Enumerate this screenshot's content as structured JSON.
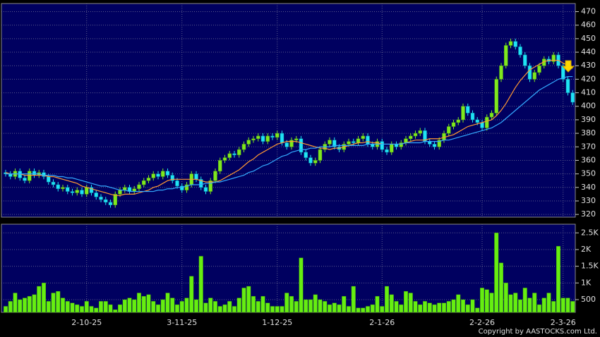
{
  "chart_data": [
    {
      "type": "candlestick",
      "categories": [
        null,
        null,
        null,
        null,
        null,
        null,
        null,
        null,
        null,
        null,
        null,
        null,
        null,
        null,
        null,
        null,
        null,
        "2-10-25",
        null,
        null,
        null,
        null,
        null,
        null,
        null,
        null,
        null,
        null,
        null,
        null,
        null,
        null,
        null,
        null,
        null,
        null,
        null,
        "3-11-25",
        null,
        null,
        null,
        null,
        null,
        null,
        null,
        null,
        null,
        null,
        null,
        null,
        null,
        null,
        null,
        null,
        null,
        null,
        null,
        "1-12-25",
        null,
        null,
        null,
        null,
        null,
        null,
        null,
        null,
        null,
        null,
        null,
        null,
        null,
        null,
        null,
        null,
        null,
        null,
        null,
        null,
        null,
        "2-1-26",
        null,
        null,
        null,
        null,
        null,
        null,
        null,
        null,
        null,
        null,
        null,
        null,
        null,
        null,
        null,
        null,
        null,
        null,
        null,
        null,
        "2-2-26",
        null,
        null,
        null,
        null,
        null,
        null,
        null,
        null,
        null,
        null,
        null,
        null,
        null,
        null,
        null,
        null,
        "2-3-26",
        null,
        null
      ],
      "open": [
        351,
        350,
        348,
        352,
        347,
        345,
        352,
        349,
        351,
        348,
        344,
        342,
        339,
        340,
        337,
        336,
        338,
        335,
        340,
        336,
        333,
        331,
        329,
        327,
        335,
        338,
        340,
        337,
        339,
        342,
        345,
        347,
        350,
        348,
        352,
        349,
        345,
        341,
        338,
        342,
        350,
        346,
        340,
        337,
        345,
        352,
        360,
        362,
        365,
        364,
        368,
        372,
        375,
        376,
        378,
        374,
        378,
        377,
        380,
        373,
        370,
        375,
        376,
        366,
        362,
        358,
        360,
        368,
        372,
        375,
        370,
        368,
        372,
        374,
        373,
        376,
        378,
        372,
        370,
        374,
        368,
        366,
        372,
        370,
        373,
        376,
        378,
        380,
        382,
        374,
        372,
        370,
        375,
        380,
        385,
        388,
        390,
        400,
        395,
        390,
        388,
        384,
        392,
        395,
        420,
        430,
        445,
        448,
        444,
        438,
        430,
        420,
        425,
        430,
        435,
        433,
        438,
        430,
        420,
        410
      ],
      "high": [
        353,
        352,
        354,
        354,
        349,
        354,
        354,
        353,
        353,
        350,
        346,
        344,
        342,
        342,
        339,
        340,
        340,
        342,
        342,
        338,
        335,
        333,
        331,
        337,
        340,
        342,
        342,
        341,
        344,
        347,
        349,
        352,
        352,
        354,
        354,
        351,
        347,
        343,
        344,
        352,
        352,
        348,
        342,
        347,
        354,
        362,
        364,
        367,
        367,
        370,
        374,
        377,
        378,
        380,
        380,
        380,
        380,
        382,
        382,
        375,
        377,
        378,
        378,
        368,
        364,
        362,
        370,
        374,
        377,
        377,
        372,
        374,
        376,
        376,
        378,
        380,
        380,
        374,
        376,
        376,
        370,
        374,
        374,
        375,
        378,
        380,
        382,
        384,
        384,
        376,
        374,
        377,
        382,
        387,
        390,
        392,
        402,
        402,
        397,
        392,
        390,
        394,
        397,
        422,
        432,
        447,
        450,
        450,
        446,
        440,
        432,
        427,
        432,
        437,
        437,
        440,
        440,
        432,
        422,
        412
      ],
      "low": [
        348,
        346,
        346,
        345,
        343,
        343,
        347,
        347,
        346,
        342,
        340,
        337,
        337,
        335,
        334,
        334,
        333,
        333,
        334,
        331,
        329,
        327,
        325,
        325,
        333,
        336,
        335,
        335,
        337,
        340,
        343,
        345,
        346,
        346,
        347,
        343,
        339,
        336,
        336,
        340,
        344,
        338,
        335,
        335,
        343,
        350,
        358,
        360,
        362,
        362,
        366,
        370,
        373,
        374,
        372,
        372,
        375,
        375,
        371,
        368,
        368,
        373,
        364,
        360,
        356,
        356,
        358,
        366,
        370,
        368,
        366,
        366,
        370,
        371,
        371,
        374,
        370,
        368,
        368,
        366,
        364,
        364,
        368,
        368,
        371,
        374,
        376,
        378,
        372,
        370,
        368,
        368,
        373,
        378,
        383,
        386,
        388,
        393,
        388,
        386,
        382,
        382,
        390,
        393,
        418,
        428,
        443,
        442,
        436,
        428,
        418,
        418,
        423,
        428,
        431,
        431,
        428,
        418,
        408,
        401
      ],
      "close": [
        350,
        348,
        352,
        347,
        345,
        352,
        349,
        351,
        348,
        344,
        342,
        339,
        340,
        337,
        336,
        338,
        335,
        340,
        336,
        333,
        331,
        329,
        327,
        335,
        338,
        340,
        337,
        339,
        342,
        345,
        347,
        350,
        348,
        352,
        349,
        345,
        341,
        338,
        342,
        350,
        346,
        340,
        337,
        345,
        352,
        360,
        362,
        365,
        364,
        368,
        372,
        375,
        376,
        378,
        374,
        378,
        377,
        380,
        373,
        370,
        375,
        376,
        366,
        362,
        358,
        360,
        368,
        372,
        375,
        370,
        368,
        372,
        374,
        373,
        376,
        378,
        372,
        370,
        374,
        368,
        366,
        372,
        370,
        373,
        376,
        378,
        380,
        382,
        374,
        372,
        370,
        375,
        380,
        385,
        388,
        390,
        400,
        395,
        390,
        388,
        384,
        392,
        395,
        420,
        430,
        445,
        448,
        444,
        438,
        430,
        420,
        425,
        430,
        435,
        433,
        438,
        430,
        420,
        410,
        403
      ],
      "series": [
        {
          "color": "#ff9933",
          "values": [
            351,
            350,
            350,
            350,
            349,
            349,
            349,
            349,
            349,
            348,
            348,
            347,
            346,
            345,
            344,
            343,
            341,
            340,
            339,
            338,
            337,
            336,
            335,
            334,
            334,
            335,
            335,
            335,
            336,
            337,
            338,
            340,
            341,
            343,
            345,
            346,
            346,
            346,
            346,
            346,
            346,
            345,
            344,
            344,
            344,
            345,
            347,
            349,
            351,
            353,
            356,
            359,
            361,
            364,
            366,
            368,
            370,
            372,
            373,
            374,
            374,
            374,
            373,
            372,
            371,
            370,
            369,
            369,
            368,
            369,
            369,
            370,
            371,
            372,
            373,
            373,
            374,
            373,
            373,
            372,
            372,
            372,
            372,
            372,
            373,
            374,
            375,
            375,
            375,
            376,
            376,
            376,
            377,
            378,
            379,
            381,
            383,
            385,
            386,
            387,
            388,
            389,
            390,
            393,
            397,
            402,
            408,
            414,
            419,
            423,
            427,
            429,
            431,
            433,
            434,
            434,
            434,
            432,
            430,
            428
          ]
        },
        {
          "color": "#33aaff",
          "values": [
            350,
            350,
            350,
            350,
            350,
            350,
            350,
            350,
            349,
            349,
            349,
            348,
            348,
            347,
            347,
            346,
            345,
            344,
            343,
            342,
            341,
            341,
            340,
            339,
            338,
            338,
            337,
            337,
            337,
            337,
            337,
            337,
            338,
            338,
            339,
            339,
            340,
            340,
            341,
            342,
            342,
            342,
            343,
            343,
            344,
            344,
            345,
            346,
            347,
            348,
            349,
            351,
            352,
            354,
            356,
            357,
            359,
            361,
            363,
            364,
            366,
            367,
            368,
            368,
            369,
            369,
            370,
            370,
            370,
            371,
            371,
            371,
            371,
            371,
            371,
            371,
            372,
            372,
            372,
            372,
            372,
            372,
            372,
            372,
            373,
            373,
            373,
            373,
            374,
            374,
            374,
            374,
            375,
            375,
            376,
            377,
            378,
            379,
            380,
            381,
            382,
            383,
            384,
            386,
            388,
            391,
            394,
            397,
            400,
            403,
            406,
            409,
            412,
            414,
            416,
            418,
            420,
            421,
            422,
            422
          ]
        }
      ],
      "up_color": "#7fe81e",
      "down_color": "#1fe3f5",
      "ylim": [
        318,
        476
      ],
      "yticks": [
        320,
        330,
        340,
        350,
        360,
        370,
        380,
        390,
        400,
        410,
        420,
        430,
        440,
        450,
        460,
        470
      ],
      "grid": true
    },
    {
      "type": "bar",
      "values": [
        300,
        450,
        700,
        500,
        550,
        600,
        650,
        900,
        1000,
        450,
        700,
        750,
        550,
        450,
        400,
        350,
        300,
        450,
        300,
        250,
        450,
        450,
        350,
        200,
        350,
        500,
        550,
        500,
        700,
        600,
        650,
        450,
        350,
        500,
        700,
        550,
        350,
        450,
        550,
        1200,
        500,
        1800,
        400,
        550,
        450,
        300,
        350,
        450,
        300,
        550,
        850,
        900,
        600,
        450,
        600,
        400,
        300,
        300,
        300,
        700,
        600,
        450,
        1750,
        500,
        500,
        650,
        500,
        450,
        350,
        400,
        350,
        600,
        300,
        900,
        250,
        250,
        300,
        350,
        600,
        300,
        900,
        650,
        450,
        350,
        750,
        700,
        450,
        350,
        450,
        400,
        350,
        400,
        400,
        450,
        500,
        650,
        500,
        350,
        500,
        250,
        850,
        800,
        700,
        2500,
        1600,
        1000,
        650,
        700,
        500,
        850,
        550,
        700,
        350,
        550,
        700,
        450,
        2100,
        550,
        550,
        450
      ],
      "color": "#66ee11",
      "ylim": [
        120,
        2760
      ],
      "yticks": [
        500,
        {
          "value": 1000,
          "label": "1K"
        },
        {
          "value": 1500,
          "label": "1.5K"
        },
        {
          "value": 2000,
          "label": "2K"
        },
        {
          "value": 2500,
          "label": "2.5K"
        }
      ],
      "grid": true
    }
  ],
  "footer": "Copyright by AASTOCKS.com Ltd."
}
